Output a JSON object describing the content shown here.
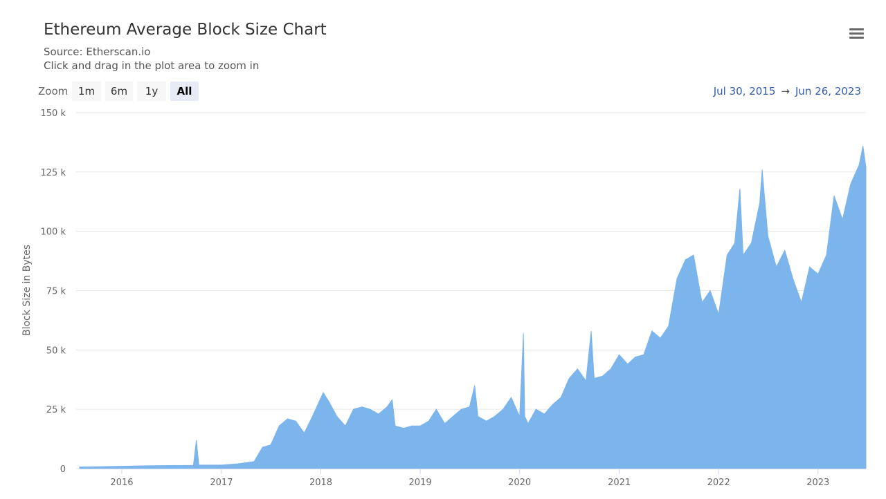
{
  "header": {
    "title": "Ethereum Average Block Size Chart",
    "source": "Source: Etherscan.io",
    "hint": "Click and drag in the plot area to zoom in",
    "menu_icon": "hamburger-menu-icon"
  },
  "zoom": {
    "label": "Zoom",
    "buttons": [
      "1m",
      "6m",
      "1y",
      "All"
    ],
    "active": "All"
  },
  "range": {
    "from": "Jul 30, 2015",
    "arrow": "→",
    "to": "Jun 26, 2023"
  },
  "colors": {
    "area_fill": "#7cb5ec",
    "grid": "#e6e6e6",
    "range_text": "#335cad"
  },
  "chart_data": {
    "type": "area",
    "title": "Ethereum Average Block Size Chart",
    "ylabel": "Block Size in Bytes",
    "xlabel": "",
    "ylim": [
      0,
      150000
    ],
    "xlim": [
      "2015-07-30",
      "2023-06-26"
    ],
    "y_ticks": [
      "0",
      "25 k",
      "50 k",
      "75 k",
      "100 k",
      "125 k",
      "150 k"
    ],
    "y_tick_values": [
      0,
      25000,
      50000,
      75000,
      100000,
      125000,
      150000
    ],
    "x_ticks": [
      "2016",
      "2017",
      "2018",
      "2019",
      "2020",
      "2021",
      "2022",
      "2023"
    ],
    "x_tick_dates": [
      "2016-01-01",
      "2017-01-01",
      "2018-01-01",
      "2019-01-01",
      "2020-01-01",
      "2021-01-01",
      "2022-01-01",
      "2023-01-01"
    ],
    "grid": true,
    "series": [
      {
        "name": "",
        "points": [
          [
            "2015-07-30",
            700
          ],
          [
            "2015-10-01",
            800
          ],
          [
            "2016-01-01",
            1000
          ],
          [
            "2016-04-01",
            1200
          ],
          [
            "2016-07-01",
            1300
          ],
          [
            "2016-09-20",
            1400
          ],
          [
            "2016-10-01",
            12000
          ],
          [
            "2016-10-10",
            1500
          ],
          [
            "2017-01-01",
            1500
          ],
          [
            "2017-03-01",
            2000
          ],
          [
            "2017-05-01",
            3000
          ],
          [
            "2017-06-01",
            9000
          ],
          [
            "2017-07-01",
            10000
          ],
          [
            "2017-08-01",
            18000
          ],
          [
            "2017-09-01",
            21000
          ],
          [
            "2017-10-01",
            20000
          ],
          [
            "2017-11-01",
            15000
          ],
          [
            "2017-12-01",
            22000
          ],
          [
            "2018-01-10",
            32000
          ],
          [
            "2018-02-01",
            28000
          ],
          [
            "2018-03-01",
            22000
          ],
          [
            "2018-04-01",
            18000
          ],
          [
            "2018-05-01",
            25000
          ],
          [
            "2018-06-01",
            26000
          ],
          [
            "2018-07-01",
            25000
          ],
          [
            "2018-08-01",
            23000
          ],
          [
            "2018-09-01",
            26000
          ],
          [
            "2018-09-20",
            29000
          ],
          [
            "2018-10-01",
            18000
          ],
          [
            "2018-11-01",
            17000
          ],
          [
            "2018-12-01",
            18000
          ],
          [
            "2019-01-01",
            18000
          ],
          [
            "2019-02-01",
            20000
          ],
          [
            "2019-03-01",
            25000
          ],
          [
            "2019-04-01",
            19000
          ],
          [
            "2019-05-01",
            22000
          ],
          [
            "2019-06-01",
            25000
          ],
          [
            "2019-07-01",
            26000
          ],
          [
            "2019-07-20",
            35000
          ],
          [
            "2019-08-01",
            22000
          ],
          [
            "2019-09-01",
            20000
          ],
          [
            "2019-10-01",
            22000
          ],
          [
            "2019-11-01",
            25000
          ],
          [
            "2019-12-01",
            30000
          ],
          [
            "2020-01-01",
            22000
          ],
          [
            "2020-01-15",
            57000
          ],
          [
            "2020-01-20",
            22000
          ],
          [
            "2020-02-01",
            19000
          ],
          [
            "2020-03-01",
            25000
          ],
          [
            "2020-04-01",
            23000
          ],
          [
            "2020-05-01",
            27000
          ],
          [
            "2020-06-01",
            30000
          ],
          [
            "2020-07-01",
            38000
          ],
          [
            "2020-08-01",
            42000
          ],
          [
            "2020-09-01",
            37000
          ],
          [
            "2020-09-20",
            58000
          ],
          [
            "2020-10-01",
            38000
          ],
          [
            "2020-11-01",
            39000
          ],
          [
            "2020-12-01",
            42000
          ],
          [
            "2021-01-01",
            48000
          ],
          [
            "2021-02-01",
            44000
          ],
          [
            "2021-03-01",
            47000
          ],
          [
            "2021-04-01",
            48000
          ],
          [
            "2021-05-01",
            58000
          ],
          [
            "2021-06-01",
            55000
          ],
          [
            "2021-07-01",
            60000
          ],
          [
            "2021-08-01",
            80000
          ],
          [
            "2021-09-01",
            88000
          ],
          [
            "2021-10-01",
            90000
          ],
          [
            "2021-11-01",
            70000
          ],
          [
            "2021-12-01",
            75000
          ],
          [
            "2022-01-01",
            65000
          ],
          [
            "2022-02-01",
            90000
          ],
          [
            "2022-03-01",
            95000
          ],
          [
            "2022-03-20",
            118000
          ],
          [
            "2022-04-01",
            90000
          ],
          [
            "2022-05-01",
            95000
          ],
          [
            "2022-06-01",
            112000
          ],
          [
            "2022-06-10",
            126000
          ],
          [
            "2022-07-01",
            98000
          ],
          [
            "2022-08-01",
            85000
          ],
          [
            "2022-09-01",
            92000
          ],
          [
            "2022-10-01",
            80000
          ],
          [
            "2022-11-01",
            70000
          ],
          [
            "2022-12-01",
            85000
          ],
          [
            "2023-01-01",
            82000
          ],
          [
            "2023-02-01",
            90000
          ],
          [
            "2023-03-01",
            115000
          ],
          [
            "2023-04-01",
            105000
          ],
          [
            "2023-05-01",
            120000
          ],
          [
            "2023-06-01",
            128000
          ],
          [
            "2023-06-15",
            136000
          ],
          [
            "2023-06-26",
            127000
          ]
        ]
      }
    ]
  }
}
